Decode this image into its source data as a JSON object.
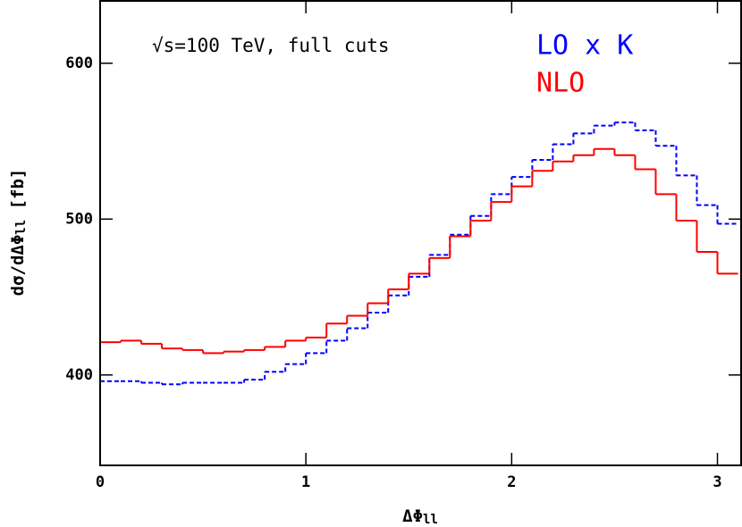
{
  "chart_data": {
    "type": "histogram",
    "title": "√s=100 TeV, full cuts",
    "xlabel": [
      "ΔΦ",
      "ll"
    ],
    "ylabel": [
      "dσ/dΔΦ",
      "ll",
      " [fb]"
    ],
    "bins": [
      0,
      0.1,
      0.2,
      0.3,
      0.4,
      0.5,
      0.6,
      0.7,
      0.8,
      0.9,
      1.0,
      1.1,
      1.2,
      1.3,
      1.4,
      1.5,
      1.6,
      1.7,
      1.8,
      1.9,
      2.0,
      2.1,
      2.2,
      2.3,
      2.4,
      2.5,
      2.6,
      2.7,
      2.8,
      2.9,
      3.0,
      3.1
    ],
    "series": [
      {
        "name": "LO x K",
        "color": "#0000ff",
        "dashed": true,
        "values": [
          396,
          396,
          395,
          394,
          395,
          395,
          395,
          397,
          402,
          407,
          414,
          422,
          430,
          440,
          451,
          463,
          477,
          490,
          502,
          516,
          527,
          538,
          548,
          555,
          560,
          562,
          557,
          547,
          528,
          509,
          497
        ]
      },
      {
        "name": "NLO",
        "color": "#ff0000",
        "dashed": false,
        "values": [
          421,
          422,
          420,
          417,
          416,
          414,
          415,
          416,
          418,
          422,
          424,
          433,
          438,
          446,
          455,
          465,
          475,
          489,
          499,
          511,
          521,
          531,
          537,
          541,
          545,
          541,
          532,
          516,
          499,
          479,
          465
        ]
      }
    ],
    "xlim": [
      0,
      3.115
    ],
    "ylim": [
      342,
      640
    ],
    "xticks": [
      0,
      1,
      2,
      3
    ],
    "yticks": [
      400,
      500,
      600
    ]
  }
}
